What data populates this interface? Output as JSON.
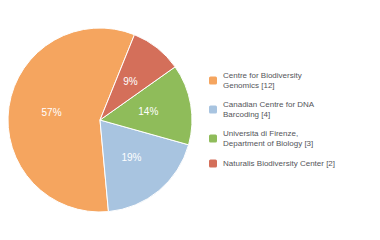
{
  "chart_data": {
    "type": "pie",
    "categories": [
      "Centre for Biodiversity\nGenomics [12]",
      "Canadian Centre for DNA\nBarcoding [4]",
      "Universita di Firenze,\nDepartment of Biology [3]",
      "Naturalis Biodiversity Center [2]"
    ],
    "values": [
      57,
      19,
      14,
      9
    ],
    "value_labels": [
      "57%",
      "19%",
      "14%",
      "9%"
    ],
    "colors": [
      "#f5a55f",
      "#a8c4e0",
      "#8fbc5a",
      "#d46f5a"
    ],
    "data_labels": true,
    "legend": "right"
  }
}
